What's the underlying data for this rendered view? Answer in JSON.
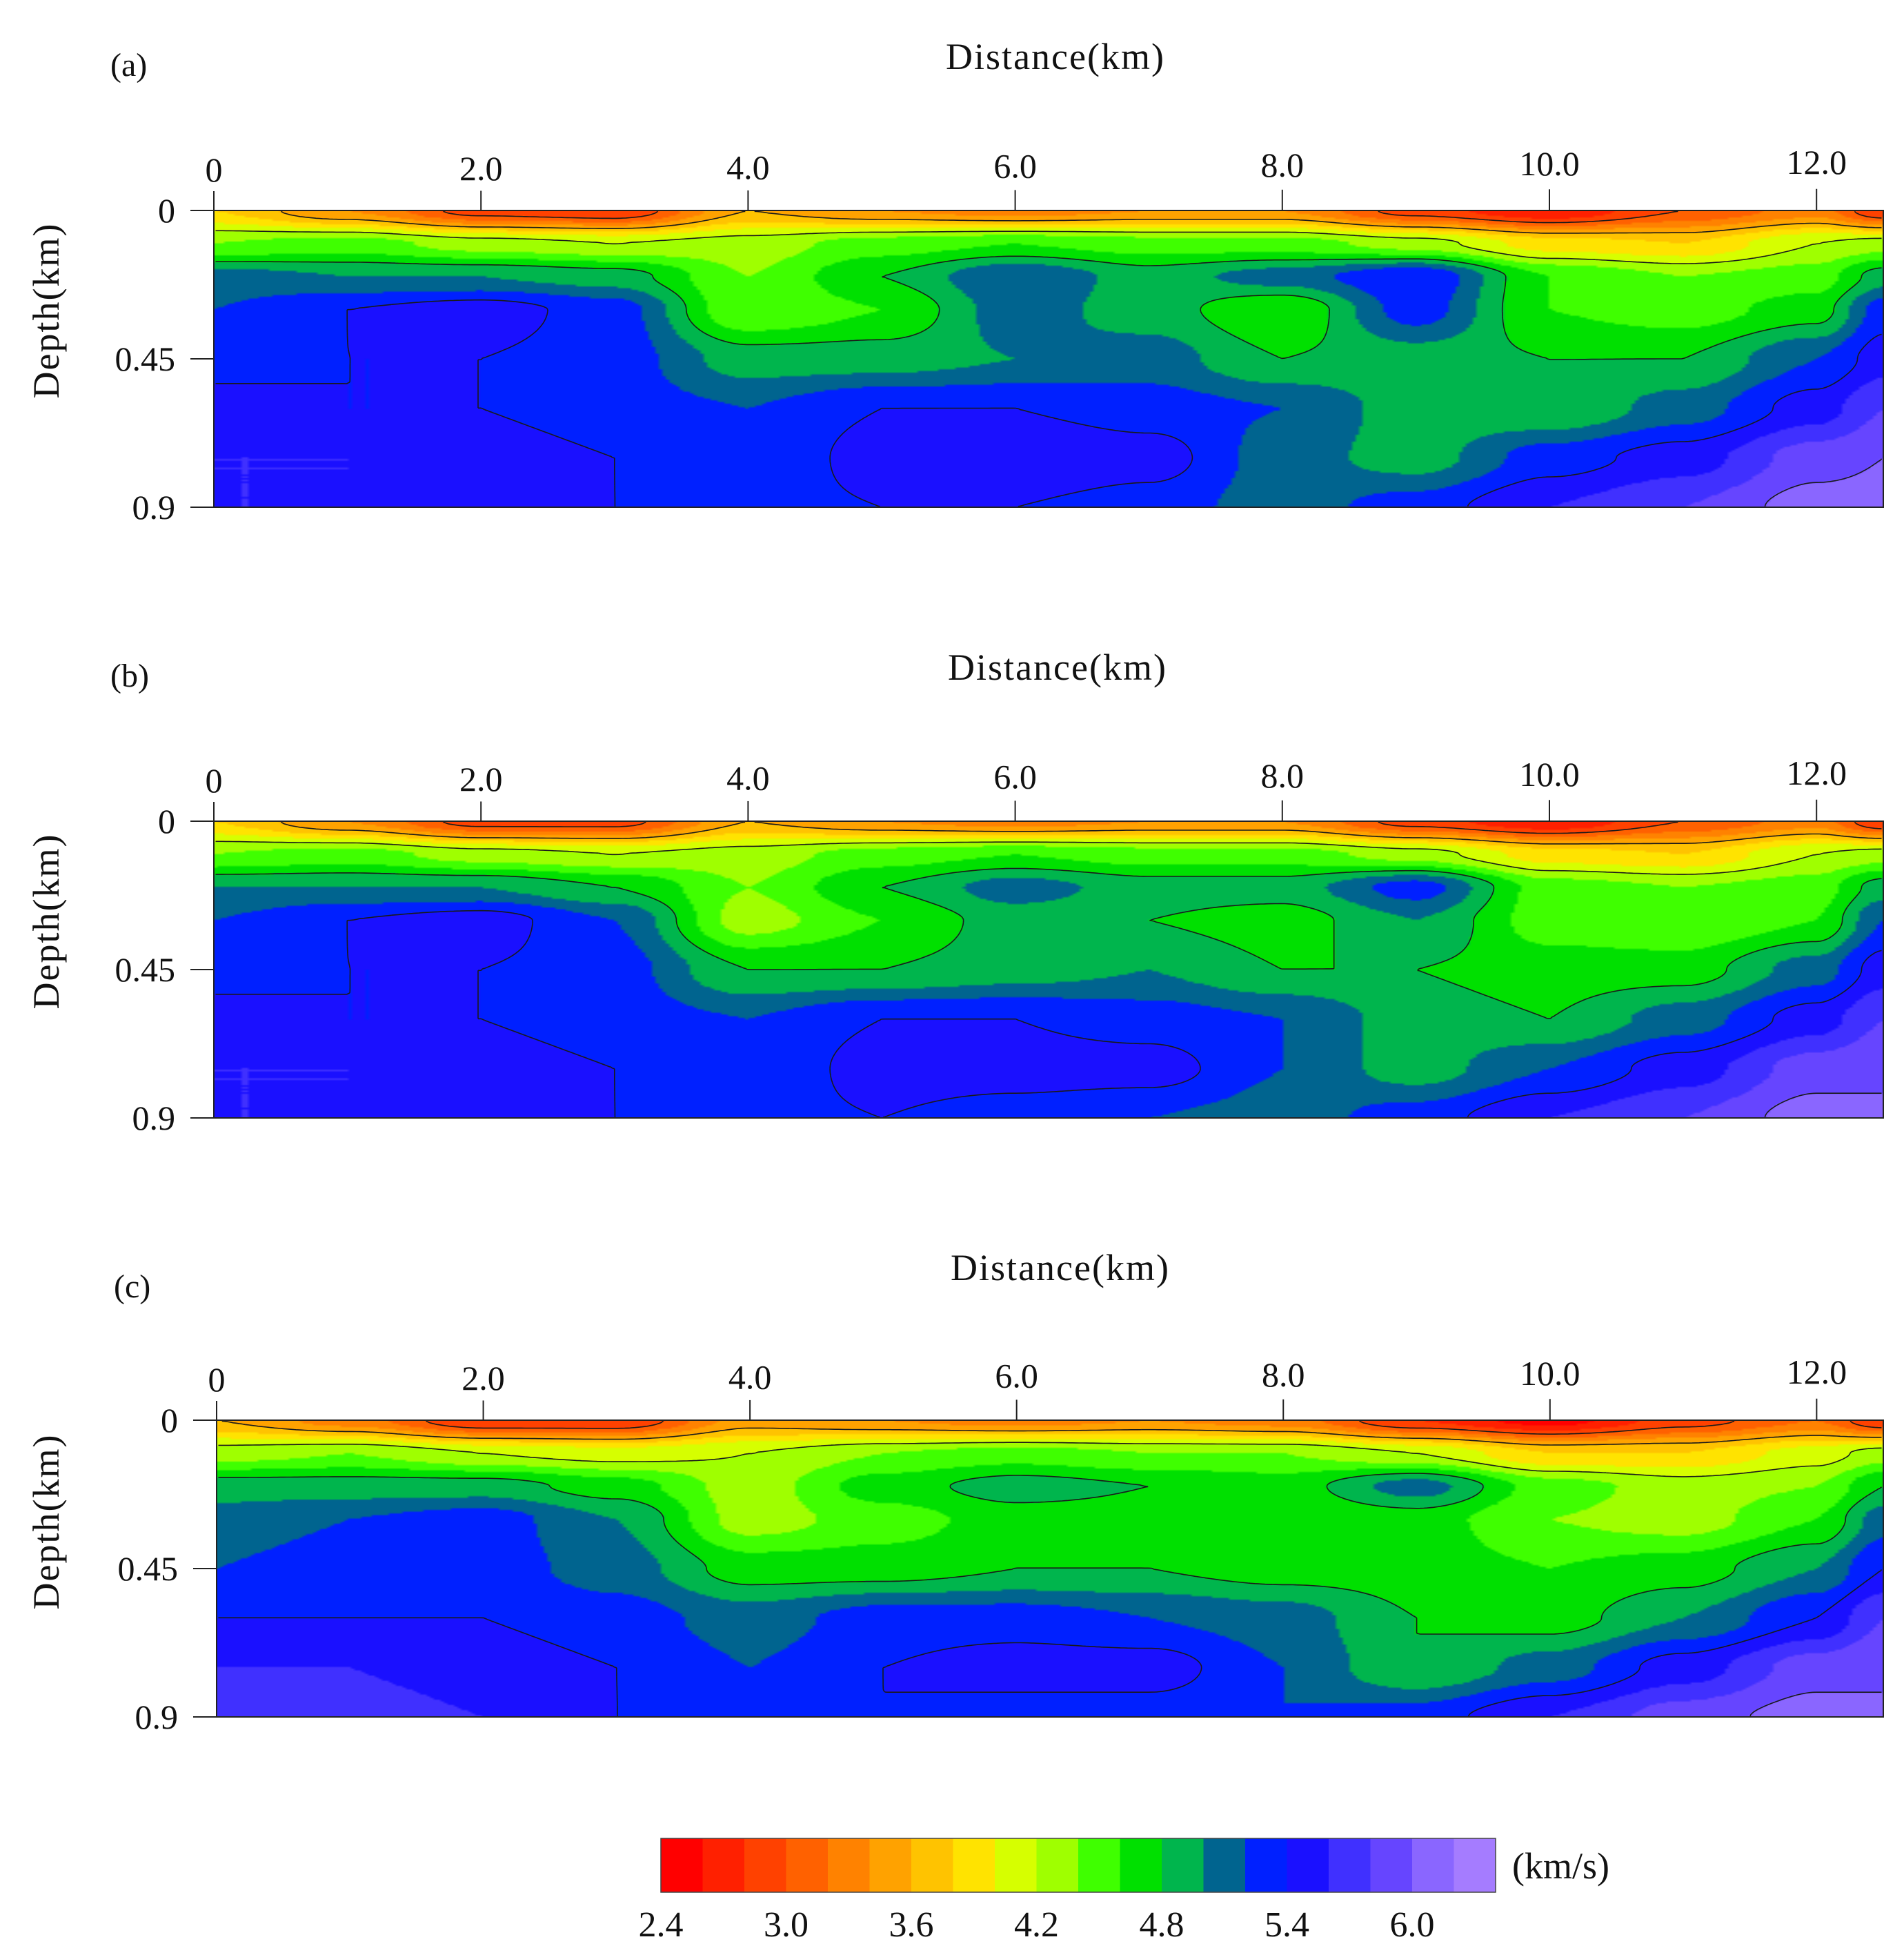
{
  "colors": [
    "#ff0000",
    "#ff2000",
    "#ff4100",
    "#ff6100",
    "#ff8200",
    "#ffa200",
    "#ffc300",
    "#ffe300",
    "#d6ff00",
    "#9fff00",
    "#3fff00",
    "#00e000",
    "#00b54d",
    "#00648f",
    "#0020ff",
    "#1a10ff",
    "#4030ff",
    "#6645ff",
    "#8a66ff",
    "#a57cff"
  ],
  "chart_data": [
    {
      "type": "heatmap",
      "panel_label": "(a)",
      "title": "Distance(km)",
      "xlabel": "Distance(km)",
      "ylabel": "Depth(km)",
      "xlim": [
        0,
        12.5
      ],
      "ylim": [
        0,
        0.9
      ],
      "x_ticks": [
        "0",
        "2.0",
        "4.0",
        "6.0",
        "8.0",
        "10.0",
        "12.0"
      ],
      "y_ticks": [
        "0",
        "0.45",
        "0.9"
      ],
      "nodes_x": [
        0,
        1.0,
        2.0,
        3.0,
        4.0,
        5.0,
        6.0,
        7.0,
        8.0,
        9.0,
        10.0,
        11.0,
        12.0,
        12.5
      ],
      "nodes_depth": [
        0,
        0.1,
        0.2,
        0.3,
        0.45,
        0.6,
        0.75,
        0.9
      ],
      "velocity_grid": [
        [
          3.8,
          3.4,
          2.9,
          2.8,
          3.6,
          3.4,
          3.3,
          3.4,
          3.4,
          2.9,
          2.6,
          3.0,
          3.3,
          2.8
        ],
        [
          4.4,
          4.5,
          4.3,
          4.2,
          4.3,
          4.5,
          4.6,
          4.5,
          4.5,
          4.3,
          3.9,
          3.8,
          4.2,
          4.3
        ],
        [
          5.1,
          5.0,
          5.0,
          4.9,
          4.4,
          4.8,
          5.2,
          4.9,
          5.1,
          5.4,
          4.6,
          4.4,
          4.5,
          4.9
        ],
        [
          5.2,
          5.4,
          5.5,
          5.3,
          4.4,
          4.6,
          5.1,
          4.9,
          4.6,
          5.3,
          4.6,
          4.5,
          4.7,
          5.3
        ],
        [
          5.3,
          5.4,
          5.4,
          5.3,
          4.9,
          4.9,
          5.0,
          5.1,
          4.8,
          4.9,
          4.8,
          4.8,
          5.2,
          5.5
        ],
        [
          5.5,
          5.4,
          5.4,
          5.3,
          5.2,
          5.4,
          5.4,
          5.3,
          5.2,
          4.9,
          4.8,
          5.1,
          5.5,
          5.8
        ],
        [
          5.6,
          5.6,
          5.5,
          5.4,
          5.2,
          5.5,
          5.6,
          5.5,
          5.1,
          4.9,
          5.3,
          5.5,
          5.9,
          6.0
        ],
        [
          5.6,
          5.6,
          5.5,
          5.4,
          5.3,
          5.4,
          5.4,
          5.3,
          5.1,
          5.3,
          5.6,
          5.8,
          6.1,
          6.1
        ]
      ]
    },
    {
      "type": "heatmap",
      "panel_label": "(b)",
      "title": "Distance(km)",
      "xlabel": "Distance(km)",
      "ylabel": "Depth(km)",
      "xlim": [
        0,
        12.5
      ],
      "ylim": [
        0,
        0.9
      ],
      "x_ticks": [
        "0",
        "2.0",
        "4.0",
        "6.0",
        "8.0",
        "10.0",
        "12.0"
      ],
      "y_ticks": [
        "0",
        "0.45",
        "0.9"
      ],
      "nodes_x": [
        0,
        1.0,
        2.0,
        3.0,
        4.0,
        5.0,
        6.0,
        7.0,
        8.0,
        9.0,
        10.0,
        11.0,
        12.0,
        12.5
      ],
      "nodes_depth": [
        0,
        0.1,
        0.2,
        0.3,
        0.45,
        0.6,
        0.75,
        0.9
      ],
      "velocity_grid": [
        [
          3.8,
          3.4,
          2.9,
          2.9,
          3.6,
          3.4,
          3.3,
          3.4,
          3.4,
          2.9,
          2.6,
          3.0,
          3.3,
          2.8
        ],
        [
          4.4,
          4.5,
          4.3,
          4.2,
          4.3,
          4.5,
          4.6,
          4.5,
          4.5,
          4.3,
          3.9,
          3.8,
          4.2,
          4.3
        ],
        [
          5.0,
          5.0,
          5.0,
          4.8,
          4.4,
          4.8,
          5.1,
          4.9,
          4.9,
          5.3,
          4.5,
          4.4,
          4.5,
          4.9
        ],
        [
          5.2,
          5.4,
          5.5,
          5.2,
          4.3,
          4.6,
          4.9,
          4.8,
          4.7,
          5.0,
          4.5,
          4.4,
          4.6,
          5.2
        ],
        [
          5.3,
          5.4,
          5.4,
          5.3,
          4.8,
          4.8,
          4.9,
          5.0,
          4.8,
          4.8,
          4.7,
          4.7,
          5.1,
          5.5
        ],
        [
          5.5,
          5.4,
          5.4,
          5.3,
          5.2,
          5.4,
          5.4,
          5.3,
          5.2,
          4.9,
          4.8,
          5.1,
          5.5,
          5.8
        ],
        [
          5.6,
          5.6,
          5.5,
          5.4,
          5.2,
          5.5,
          5.5,
          5.5,
          5.2,
          4.9,
          5.2,
          5.5,
          5.9,
          6.0
        ],
        [
          5.6,
          5.6,
          5.5,
          5.4,
          5.3,
          5.4,
          5.3,
          5.2,
          5.1,
          5.3,
          5.6,
          5.8,
          6.1,
          6.0
        ]
      ]
    },
    {
      "type": "heatmap",
      "panel_label": "(c)",
      "title": "Distance(km)",
      "xlabel": "Distance(km)",
      "ylabel": "Depth(km)",
      "xlim": [
        0,
        12.5
      ],
      "ylim": [
        0,
        0.9
      ],
      "x_ticks": [
        "0",
        "2.0",
        "4.0",
        "6.0",
        "8.0",
        "10.0",
        "12.0"
      ],
      "y_ticks": [
        "0",
        "0.45",
        "0.9"
      ],
      "nodes_x": [
        0,
        1.0,
        2.0,
        3.0,
        4.0,
        5.0,
        6.0,
        7.0,
        8.0,
        9.0,
        10.0,
        11.0,
        12.0,
        12.5
      ],
      "nodes_depth": [
        0,
        0.1,
        0.2,
        0.3,
        0.45,
        0.6,
        0.75,
        0.9
      ],
      "velocity_grid": [
        [
          3.6,
          3.3,
          2.8,
          2.8,
          3.5,
          3.4,
          3.3,
          3.4,
          3.3,
          2.8,
          2.5,
          2.9,
          3.2,
          2.8
        ],
        [
          4.3,
          4.4,
          4.2,
          4.1,
          4.2,
          4.4,
          4.5,
          4.4,
          4.4,
          4.2,
          3.8,
          3.8,
          4.1,
          4.3
        ],
        [
          4.9,
          4.9,
          4.9,
          4.7,
          4.3,
          4.7,
          4.9,
          4.8,
          4.7,
          5.1,
          4.5,
          4.3,
          4.4,
          4.8
        ],
        [
          5.1,
          5.2,
          5.3,
          5.0,
          4.3,
          4.5,
          4.7,
          4.7,
          4.6,
          4.7,
          4.4,
          4.3,
          4.6,
          5.1
        ],
        [
          5.2,
          5.3,
          5.3,
          5.1,
          4.7,
          4.7,
          4.8,
          4.8,
          4.7,
          4.7,
          4.6,
          4.7,
          5.0,
          5.4
        ],
        [
          5.4,
          5.4,
          5.4,
          5.3,
          5.1,
          5.3,
          5.3,
          5.2,
          5.1,
          4.8,
          4.7,
          5.0,
          5.4,
          5.8
        ],
        [
          5.6,
          5.6,
          5.5,
          5.4,
          5.2,
          5.4,
          5.5,
          5.5,
          5.2,
          4.8,
          5.1,
          5.5,
          5.9,
          6.0
        ],
        [
          5.7,
          5.7,
          5.6,
          5.4,
          5.3,
          5.4,
          5.3,
          5.3,
          5.2,
          5.3,
          5.6,
          5.9,
          6.1,
          6.0
        ]
      ]
    }
  ],
  "colorbar": {
    "unit": "(km/s)",
    "min": 2.4,
    "max": 6.4,
    "step": 0.2,
    "tick_labels": [
      "2.4",
      "3.0",
      "3.6",
      "4.2",
      "4.8",
      "5.4",
      "6.0"
    ]
  }
}
